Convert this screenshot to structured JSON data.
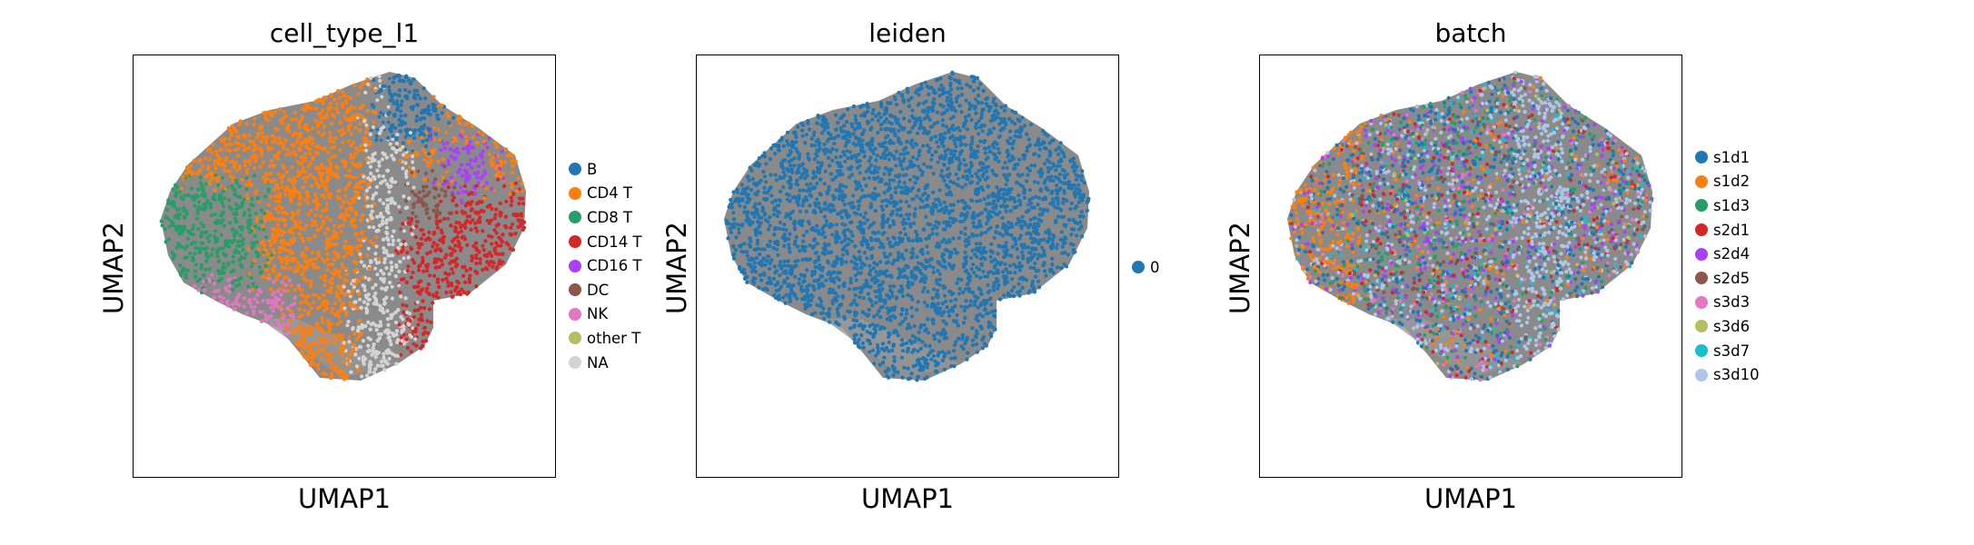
{
  "chart_data": [
    {
      "type": "scatter",
      "title": "cell_type_l1",
      "xlabel": "UMAP1",
      "ylabel": "UMAP2",
      "legend_placement": "right",
      "grid": false,
      "series": [
        {
          "name": "B",
          "color": "#1f77b4"
        },
        {
          "name": "CD4 T",
          "color": "#ff7f0e"
        },
        {
          "name": "CD8 T",
          "color": "#279e68"
        },
        {
          "name": "CD14 T",
          "color": "#d62728"
        },
        {
          "name": "CD16 T",
          "color": "#aa40fc"
        },
        {
          "name": "DC",
          "color": "#8c564b"
        },
        {
          "name": "NK",
          "color": "#e377c2"
        },
        {
          "name": "other T",
          "color": "#b5bd61"
        },
        {
          "name": "NA",
          "color": "#d3d3d3"
        }
      ]
    },
    {
      "type": "scatter",
      "title": "leiden",
      "xlabel": "UMAP1",
      "ylabel": "UMAP2",
      "legend_placement": "right",
      "grid": false,
      "series": [
        {
          "name": "0",
          "color": "#1f77b4"
        }
      ]
    },
    {
      "type": "scatter",
      "title": "batch",
      "xlabel": "UMAP1",
      "ylabel": "UMAP2",
      "legend_placement": "right",
      "grid": false,
      "series": [
        {
          "name": "s1d1",
          "color": "#1f77b4"
        },
        {
          "name": "s1d2",
          "color": "#ff7f0e"
        },
        {
          "name": "s1d3",
          "color": "#279e68"
        },
        {
          "name": "s2d1",
          "color": "#d62728"
        },
        {
          "name": "s2d4",
          "color": "#aa40fc"
        },
        {
          "name": "s2d5",
          "color": "#8c564b"
        },
        {
          "name": "s3d3",
          "color": "#e377c2"
        },
        {
          "name": "s3d6",
          "color": "#b5bd61"
        },
        {
          "name": "s3d7",
          "color": "#17becf"
        },
        {
          "name": "s3d10",
          "color": "#aec7e8"
        }
      ]
    }
  ]
}
